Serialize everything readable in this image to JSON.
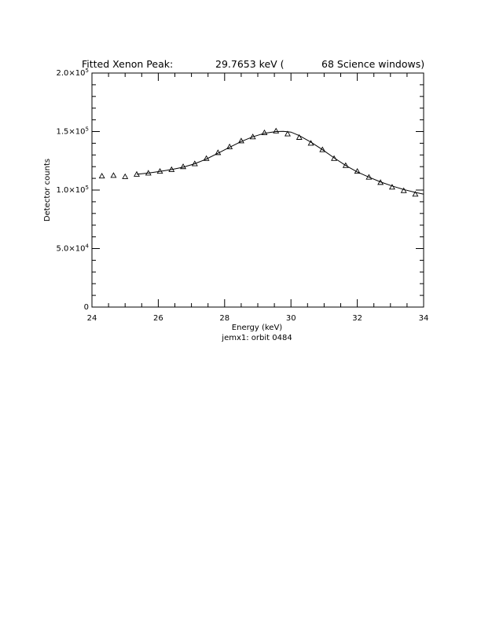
{
  "chart_data": {
    "type": "scatter",
    "title_parts": [
      "Fitted Xenon Peak:",
      "29.7653 keV (",
      "68 Science windows)"
    ],
    "xlabel": "Energy (keV)",
    "ylabel": "Detector counts",
    "footer": "jemx1: orbit 0484",
    "xlim": [
      24,
      34
    ],
    "ylim": [
      0,
      200000
    ],
    "x_ticks": [
      24,
      26,
      28,
      30,
      32,
      34
    ],
    "x_tick_labels": [
      "24",
      "26",
      "28",
      "30",
      "32",
      "34"
    ],
    "y_ticks": [
      0,
      50000,
      100000,
      150000,
      200000
    ],
    "y_tick_labels": [
      {
        "mant": "0",
        "exp": ""
      },
      {
        "mant": "5.0×10",
        "exp": "4"
      },
      {
        "mant": "1.0×10",
        "exp": "5"
      },
      {
        "mant": "1.5×10",
        "exp": "5"
      },
      {
        "mant": "2.0×10",
        "exp": "5"
      }
    ],
    "grid": false,
    "series": [
      {
        "marker": "triangle",
        "x": [
          24.3,
          24.65,
          25.0,
          25.35,
          25.7,
          26.05,
          26.4,
          26.75,
          27.1,
          27.45,
          27.8,
          28.15,
          28.5,
          28.85,
          29.2,
          29.55,
          29.9,
          30.25,
          30.6,
          30.95,
          31.3,
          31.65,
          32.0,
          32.35,
          32.7,
          33.05,
          33.4,
          33.75
        ],
        "y": [
          112000,
          112500,
          111500,
          113500,
          114500,
          116000,
          117500,
          120000,
          122500,
          127000,
          132000,
          137000,
          142000,
          145500,
          149000,
          150500,
          148000,
          145000,
          140000,
          134500,
          127000,
          121000,
          116000,
          111000,
          106500,
          102500,
          99500,
          96500
        ]
      },
      {
        "marker": "none",
        "line": "solid",
        "x": [
          25.35,
          25.7,
          26.05,
          26.4,
          26.75,
          27.1,
          27.45,
          27.8,
          28.15,
          28.5,
          28.85,
          29.2,
          29.55,
          29.77,
          30.0,
          30.25,
          30.6,
          30.95,
          31.3,
          31.65,
          32.0,
          32.35,
          32.7,
          33.05,
          33.4,
          33.75,
          34.0
        ],
        "y": [
          113500,
          114500,
          116000,
          117500,
          119500,
          122500,
          126500,
          131500,
          136500,
          141500,
          145500,
          148500,
          150000,
          150200,
          149500,
          146500,
          141000,
          134500,
          127500,
          121000,
          115500,
          111000,
          107000,
          103500,
          100500,
          98000,
          96500
        ]
      }
    ]
  }
}
